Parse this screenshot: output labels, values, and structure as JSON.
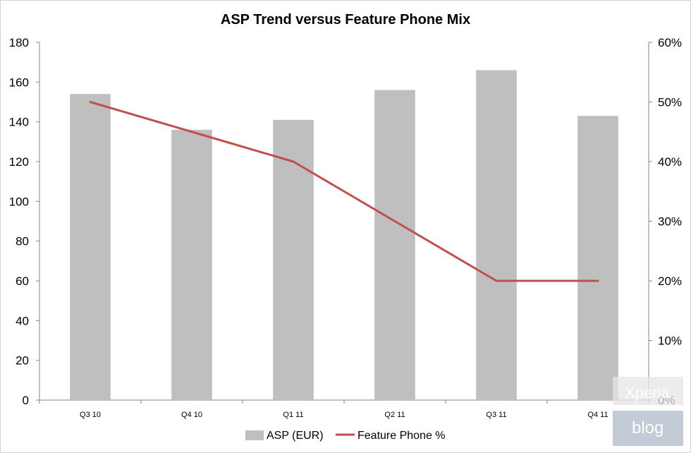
{
  "chart_data": {
    "type": "bar",
    "title": "ASP Trend versus Feature Phone Mix",
    "categories": [
      "Q3 10",
      "Q4 10",
      "Q1 11",
      "Q2 11",
      "Q3 11",
      "Q4 11"
    ],
    "series": [
      {
        "name": "ASP (EUR)",
        "type": "bar",
        "axis": "left",
        "color": "#bfbfbf",
        "values": [
          154,
          136,
          141,
          156,
          166,
          143
        ]
      },
      {
        "name": "Feature Phone %",
        "type": "line",
        "axis": "right",
        "color": "#c0504d",
        "values": [
          0.5,
          0.45,
          0.4,
          0.3,
          0.2,
          0.2
        ]
      }
    ],
    "y_left": {
      "min": 0,
      "max": 180,
      "step": 20,
      "ticks": [
        "0",
        "20",
        "40",
        "60",
        "80",
        "100",
        "120",
        "140",
        "160",
        "180"
      ]
    },
    "y_right": {
      "min": 0,
      "max": 0.6,
      "step": 0.1,
      "ticks": [
        "0%",
        "10%",
        "20%",
        "30%",
        "40%",
        "50%",
        "60%"
      ]
    },
    "grid": false,
    "legend": {
      "position": "bottom",
      "items": [
        "ASP (EUR)",
        "Feature Phone %"
      ]
    }
  },
  "watermark": {
    "line1": "Xperia",
    "line2": "blog"
  }
}
